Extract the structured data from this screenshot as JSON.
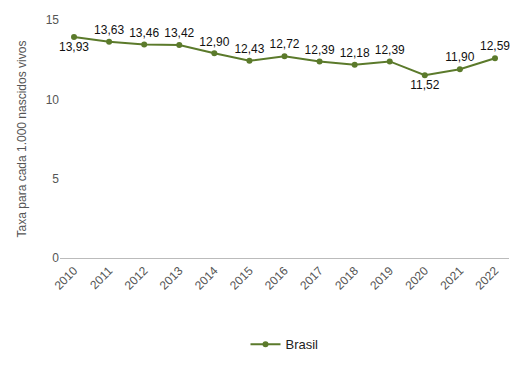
{
  "chart_data": {
    "type": "line",
    "y_label": "Taxa para cada 1.000 nascidos vivos",
    "categories": [
      "2010",
      "2011",
      "2012",
      "2013",
      "2014",
      "2015",
      "2016",
      "2017",
      "2018",
      "2019",
      "2020",
      "2021",
      "2022"
    ],
    "series": [
      {
        "name": "Brasil",
        "color": "#5b7a2b",
        "marker": "circle",
        "values": [
          13.93,
          13.63,
          13.46,
          13.42,
          12.9,
          12.43,
          12.72,
          12.39,
          12.18,
          12.39,
          11.52,
          11.9,
          12.59
        ],
        "value_labels": [
          "13,93",
          "13,63",
          "13,46",
          "13,42",
          "12,90",
          "12,43",
          "12,72",
          "12,39",
          "12,18",
          "12,39",
          "11,52",
          "11,90",
          "12,59"
        ]
      }
    ],
    "ylim": [
      0,
      15
    ],
    "yticks": [
      0,
      5,
      10,
      15
    ],
    "grid": false,
    "legend": "bottom",
    "data_labels": true
  }
}
